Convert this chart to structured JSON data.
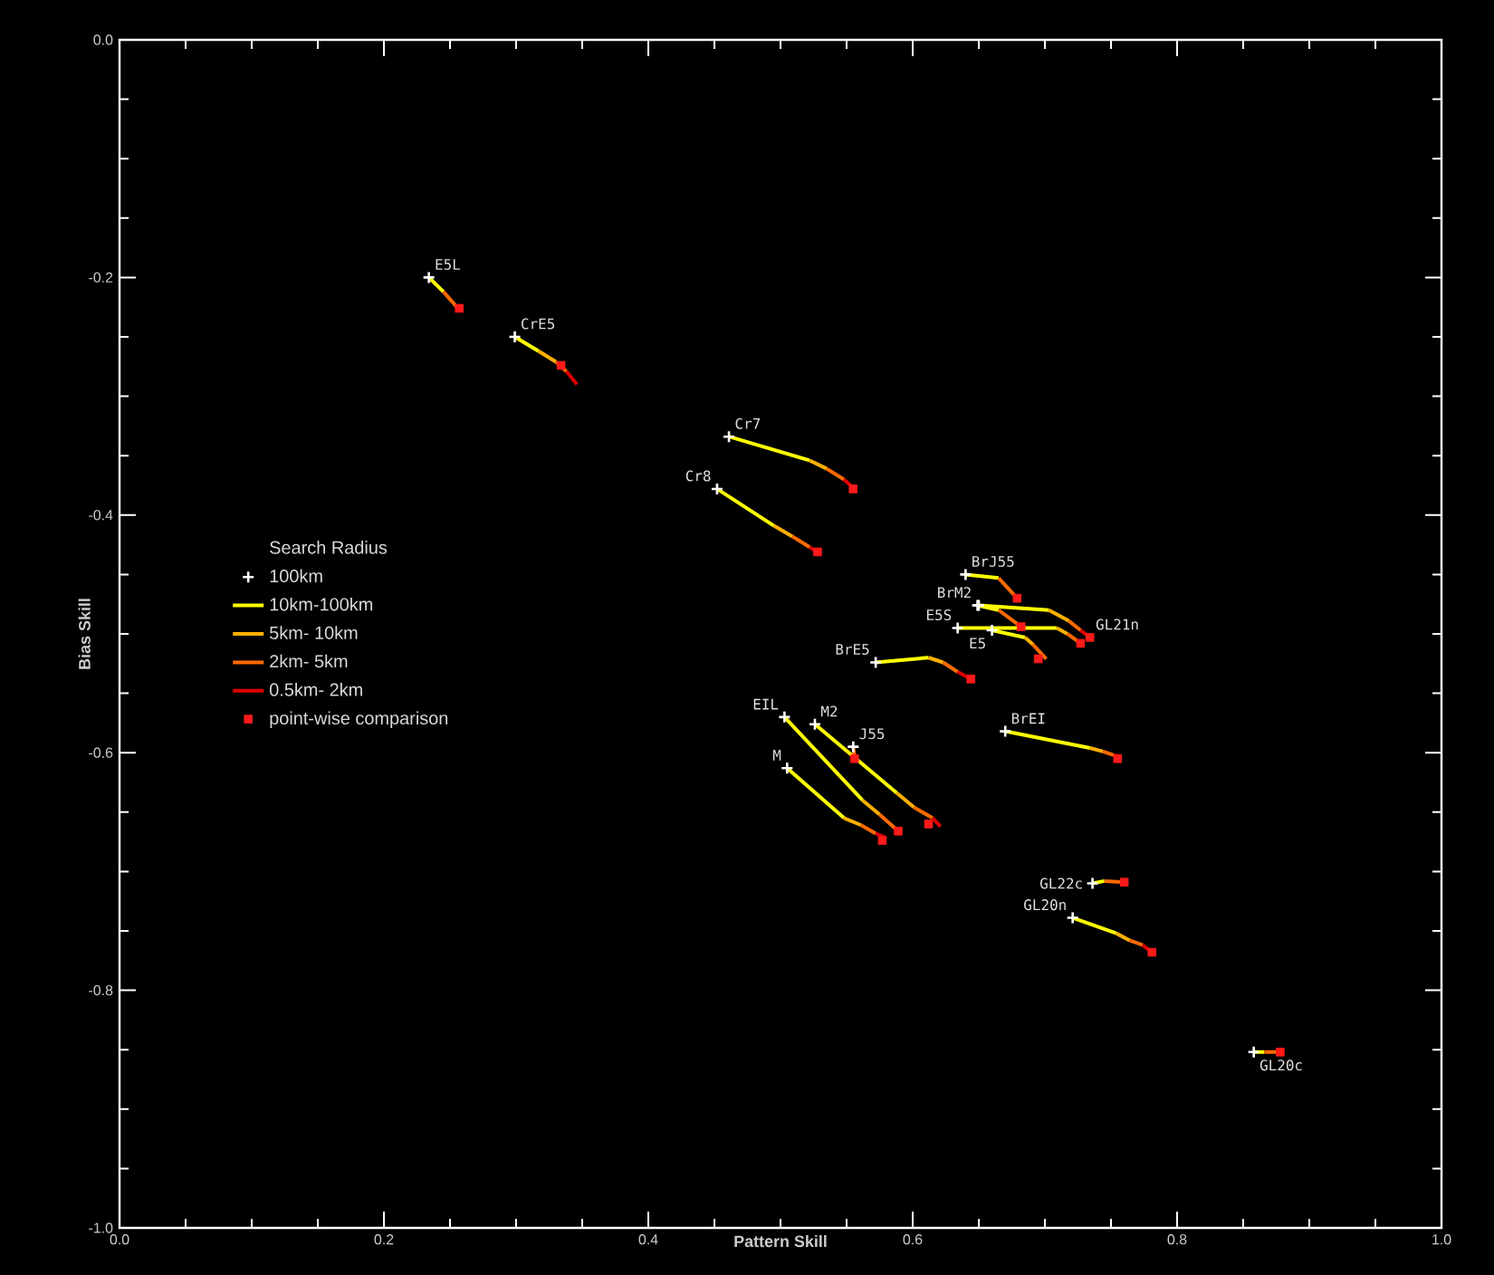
{
  "chart_data": {
    "type": "line",
    "xlabel": "Pattern Skill",
    "ylabel": "Bias Skill",
    "legend_title": "Search Radius",
    "legend": "left",
    "xlim": [
      0,
      1
    ],
    "ylim": [
      -1,
      0
    ],
    "xticks": [
      {
        "value": 0,
        "label": "0.0"
      },
      {
        "value": 0.2,
        "label": "0.2"
      },
      {
        "value": 0.4,
        "label": "0.4"
      },
      {
        "value": 0.6,
        "label": "0.6"
      },
      {
        "value": 0.8,
        "label": "0.8"
      },
      {
        "value": 1,
        "label": "1.0"
      }
    ],
    "yticks": [
      {
        "value": -1,
        "label": "-1.0"
      },
      {
        "value": -0.8,
        "label": "-0.8"
      },
      {
        "value": -0.6,
        "label": "-0.6"
      },
      {
        "value": -0.4,
        "label": "-0.4"
      },
      {
        "value": -0.2,
        "label": "-0.2"
      },
      {
        "value": 0,
        "label": "0.0"
      }
    ],
    "series": [
      {
        "name": "100km",
        "type": "scatter",
        "marker": "cross",
        "color": "#ffffff",
        "x": [
          0.234,
          0.299,
          0.461,
          0.452,
          0.64,
          0.649,
          0.65,
          0.634,
          0.66,
          0.572,
          0.503,
          0.526,
          0.505,
          0.555,
          0.67,
          0.736,
          0.721,
          0.858
        ],
        "values": [
          -0.2,
          -0.25,
          -0.334,
          -0.378,
          -0.45,
          -0.476,
          -0.476,
          -0.495,
          -0.497,
          -0.524,
          -0.57,
          -0.576,
          -0.613,
          -0.595,
          -0.582,
          -0.71,
          -0.739,
          -0.852
        ]
      },
      {
        "name": "10km-100km",
        "type": "line",
        "color": "#ffff00",
        "x": [
          0.234,
          0.245,
          null,
          0.299,
          0.317,
          null,
          0.461,
          0.522,
          null,
          0.452,
          0.495,
          null,
          0.64,
          0.665,
          null,
          0.649,
          0.665,
          null,
          0.65,
          0.703,
          null,
          0.634,
          0.709,
          null,
          0.66,
          0.685,
          null,
          0.572,
          0.612,
          null,
          0.503,
          0.562,
          null,
          0.526,
          0.588,
          null,
          0.505,
          0.548,
          null,
          0.67,
          0.734,
          null,
          0.736,
          0.745,
          null,
          0.721,
          0.754,
          null,
          0.858,
          0.866
        ],
        "values": [
          -0.2,
          -0.212,
          null,
          -0.25,
          -0.262,
          null,
          -0.334,
          -0.354,
          null,
          -0.378,
          -0.409,
          null,
          -0.45,
          -0.453,
          null,
          -0.476,
          -0.48,
          null,
          -0.476,
          -0.48,
          null,
          -0.495,
          -0.495,
          null,
          -0.497,
          -0.503,
          null,
          -0.524,
          -0.52,
          null,
          -0.57,
          -0.64,
          null,
          -0.576,
          -0.634,
          null,
          -0.613,
          -0.655,
          null,
          -0.582,
          -0.596,
          null,
          -0.71,
          -0.708,
          null,
          -0.739,
          -0.752,
          null,
          -0.852,
          -0.852
        ]
      },
      {
        "name": "5km- 10km",
        "type": "line",
        "color": "#ffb000",
        "x": [
          0.317,
          0.33,
          null,
          0.522,
          0.535,
          null,
          0.495,
          0.509,
          null,
          0.703,
          0.718,
          null,
          0.709,
          0.717,
          null,
          0.685,
          0.691,
          null,
          0.612,
          0.623,
          null,
          0.562,
          0.575,
          null,
          0.588,
          0.601,
          null,
          0.548,
          0.561,
          null,
          0.734,
          0.744,
          null,
          0.754,
          0.764
        ],
        "values": [
          -0.262,
          -0.271,
          null,
          -0.354,
          -0.361,
          null,
          -0.409,
          -0.418,
          null,
          -0.48,
          -0.489,
          null,
          -0.495,
          -0.5,
          null,
          -0.503,
          -0.509,
          null,
          -0.52,
          -0.524,
          null,
          -0.64,
          -0.652,
          null,
          -0.634,
          -0.646,
          null,
          -0.655,
          -0.661,
          null,
          -0.596,
          -0.599,
          null,
          -0.752,
          -0.758
        ]
      },
      {
        "name": "2km- 5km",
        "type": "line",
        "color": "#ff6a00",
        "x": [
          0.245,
          0.256,
          null,
          0.33,
          0.338,
          null,
          0.535,
          0.548,
          null,
          0.509,
          0.522,
          null,
          0.665,
          0.679,
          null,
          0.665,
          0.682,
          null,
          0.718,
          0.727,
          null,
          0.717,
          0.727,
          null,
          0.691,
          0.701,
          null,
          0.623,
          0.634,
          null,
          0.575,
          0.589,
          null,
          0.601,
          0.615,
          null,
          0.555,
          0.556,
          null,
          0.561,
          0.572,
          null,
          0.744,
          0.752,
          null,
          0.745,
          0.76,
          null,
          0.764,
          0.774,
          null,
          0.866,
          0.878
        ],
        "values": [
          -0.212,
          -0.226,
          null,
          -0.271,
          -0.279,
          null,
          -0.361,
          -0.37,
          null,
          -0.418,
          -0.427,
          null,
          -0.453,
          -0.47,
          null,
          -0.48,
          -0.494,
          null,
          -0.489,
          -0.497,
          null,
          -0.5,
          -0.508,
          null,
          -0.509,
          -0.521,
          null,
          -0.524,
          -0.532,
          null,
          -0.652,
          -0.666,
          null,
          -0.646,
          -0.655,
          null,
          -0.595,
          -0.603,
          null,
          -0.661,
          -0.668,
          null,
          -0.599,
          -0.602,
          null,
          -0.708,
          -0.709,
          null,
          -0.758,
          -0.762,
          null,
          -0.852,
          -0.852
        ]
      },
      {
        "name": "0.5km- 2km",
        "type": "line",
        "color": "#dd0000",
        "x": [
          0.338,
          0.346,
          null,
          0.548,
          0.555,
          null,
          0.522,
          0.528,
          null,
          0.727,
          0.734,
          null,
          0.634,
          0.644,
          null,
          0.615,
          0.621,
          null,
          0.572,
          0.58,
          null,
          0.752,
          0.758,
          null,
          0.774,
          0.781
        ],
        "values": [
          -0.279,
          -0.29,
          null,
          -0.37,
          -0.377,
          null,
          -0.427,
          -0.431,
          null,
          -0.497,
          -0.503,
          null,
          -0.532,
          -0.538,
          null,
          -0.655,
          -0.662,
          null,
          -0.668,
          -0.672,
          null,
          -0.602,
          -0.604,
          null,
          -0.762,
          -0.768
        ]
      },
      {
        "name": "point-wise comparison",
        "type": "scatter",
        "marker": "square",
        "color": "#ff1a1a",
        "x": [
          0.257,
          0.334,
          0.555,
          0.528,
          0.679,
          0.682,
          0.734,
          0.727,
          0.695,
          0.644,
          0.589,
          0.612,
          0.577,
          0.556,
          0.755,
          0.76,
          0.781,
          0.878
        ],
        "values": [
          -0.226,
          -0.274,
          -0.378,
          -0.431,
          -0.47,
          -0.494,
          -0.503,
          -0.508,
          -0.521,
          -0.538,
          -0.666,
          -0.66,
          -0.674,
          -0.605,
          -0.605,
          -0.709,
          -0.768,
          -0.852
        ]
      }
    ],
    "annotations": [
      {
        "text": "E5L",
        "x": 0.234,
        "y": -0.2
      },
      {
        "text": "CrE5",
        "x": 0.299,
        "y": -0.25
      },
      {
        "text": "Cr7",
        "x": 0.461,
        "y": -0.334
      },
      {
        "text": "Cr8",
        "x": 0.452,
        "y": -0.378
      },
      {
        "text": "E5S",
        "x": 0.634,
        "y": -0.495
      },
      {
        "text": "E5",
        "x": 0.66,
        "y": -0.497
      },
      {
        "text": "BrJ55",
        "x": 0.64,
        "y": -0.45
      },
      {
        "text": "BrM2",
        "x": 0.649,
        "y": -0.476
      },
      {
        "text": "GL21n",
        "x": 0.734,
        "y": -0.503
      },
      {
        "text": "BrE5",
        "x": 0.572,
        "y": -0.524
      },
      {
        "text": "EIL",
        "x": 0.503,
        "y": -0.57
      },
      {
        "text": "M2",
        "x": 0.526,
        "y": -0.576
      },
      {
        "text": "J55",
        "x": 0.555,
        "y": -0.595
      },
      {
        "text": "M",
        "x": 0.505,
        "y": -0.613
      },
      {
        "text": "BrEI",
        "x": 0.67,
        "y": -0.582
      },
      {
        "text": "GL22c",
        "x": 0.736,
        "y": -0.71
      },
      {
        "text": "GL20n",
        "x": 0.721,
        "y": -0.739
      },
      {
        "text": "GL20c",
        "x": 0.858,
        "y": -0.852
      }
    ]
  }
}
